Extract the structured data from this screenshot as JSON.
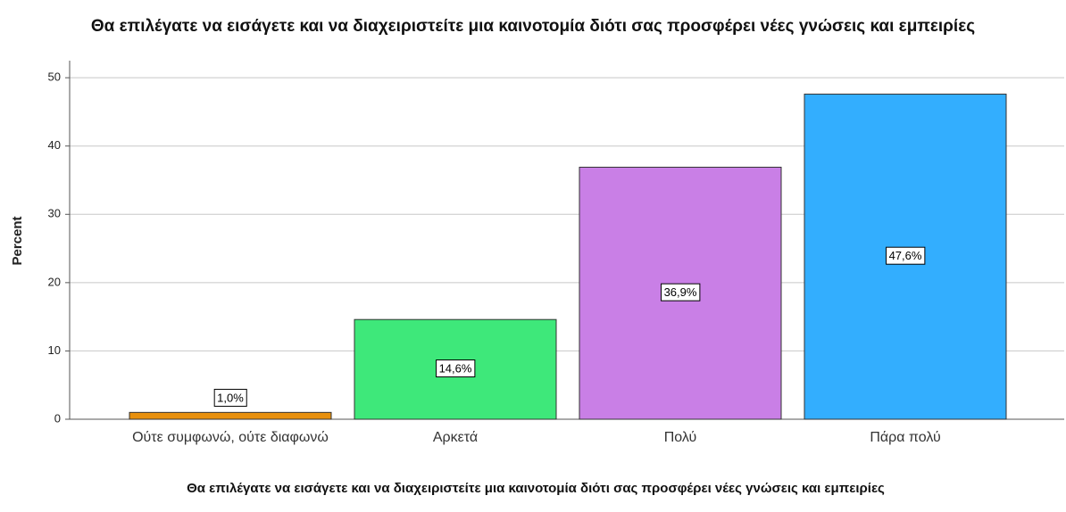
{
  "chart_data": {
    "type": "bar",
    "title": "Θα επιλέγατε να εισάγετε και να διαχειριστείτε μια καινοτομία διότι σας προσφέρει νέες γνώσεις και εμπειρίες",
    "x_label": "Θα επιλέγατε να εισάγετε και να διαχειριστείτε μια καινοτομία διότι σας προσφέρει νέες γνώσεις και εμπειρίες",
    "y_label": "Percent",
    "categories": [
      "Ούτε συμφωνώ, ούτε διαφωνώ",
      "Αρκετά",
      "Πολύ",
      "Πάρα πολύ"
    ],
    "values": [
      1.0,
      14.6,
      36.9,
      47.6
    ],
    "value_labels": [
      "1,0%",
      "14,6%",
      "36,9%",
      "47,6%"
    ],
    "colors": [
      "#e8900c",
      "#3ee87a",
      "#c97fe6",
      "#33aefe"
    ],
    "ylim": [
      0,
      52.5
    ],
    "yticks": [
      0,
      10,
      20,
      30,
      40,
      50
    ],
    "grid": true
  }
}
